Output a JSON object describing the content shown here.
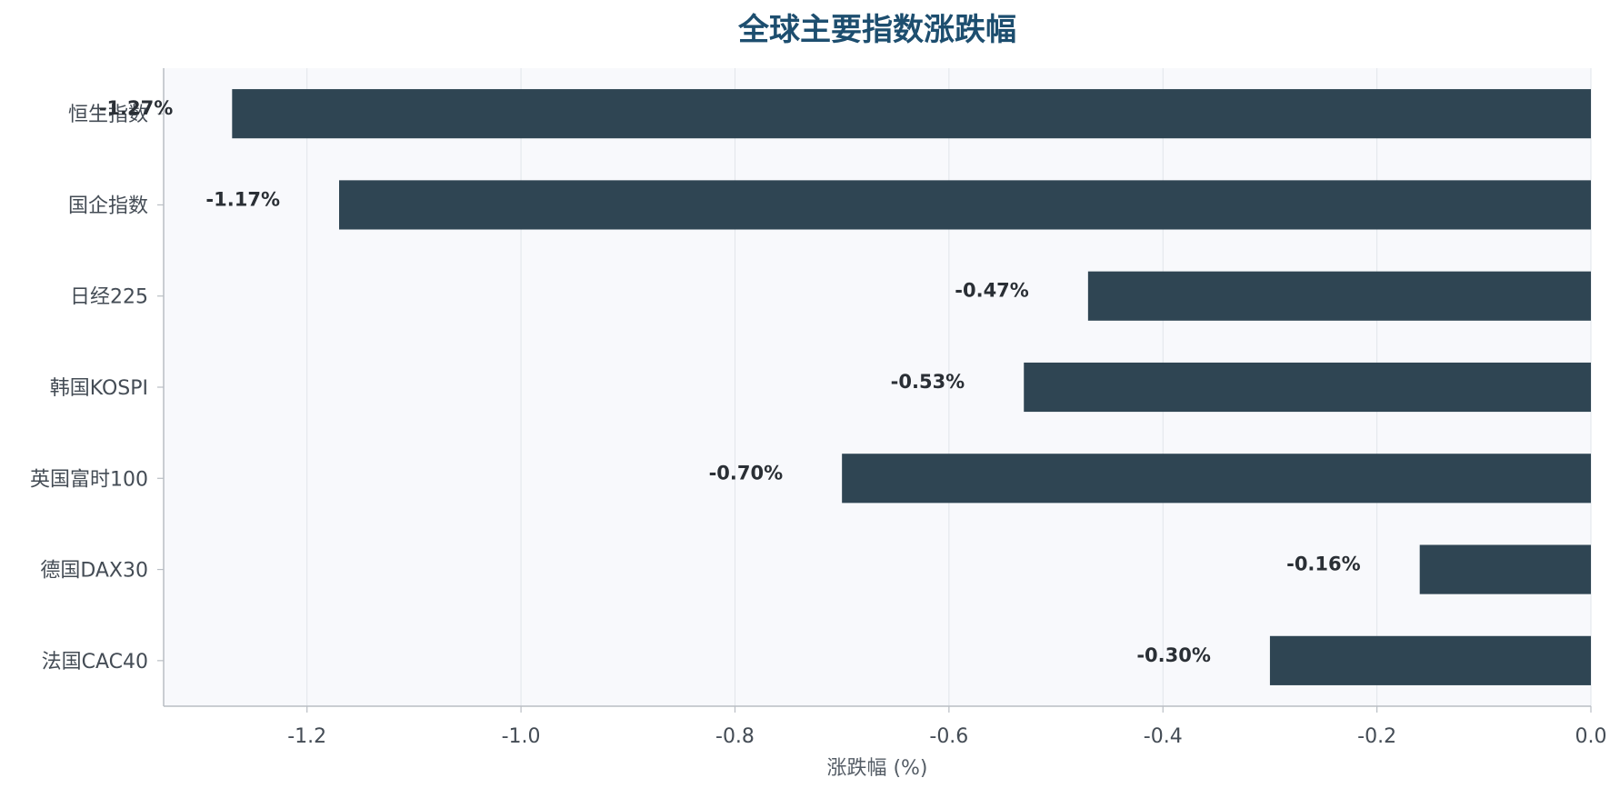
{
  "chart_data": {
    "type": "bar",
    "orientation": "horizontal",
    "title": "全球主要指数涨跌幅",
    "xlabel": "涨跌幅 (%)",
    "ylabel": "",
    "categories": [
      "恒生指数",
      "国企指数",
      "日经225",
      "韩国KOSPI",
      "英国富时100",
      "德国DAX30",
      "法国CAC40"
    ],
    "values": [
      -1.27,
      -1.17,
      -0.47,
      -0.53,
      -0.7,
      -0.16,
      -0.3
    ],
    "data_labels": [
      "-1.27%",
      "-1.17%",
      "-0.47%",
      "-0.53%",
      "-0.70%",
      "-0.16%",
      "-0.30%"
    ],
    "x_ticks": [
      -1.2,
      -1.0,
      -0.8,
      -0.6,
      -0.4,
      -0.2,
      0.0
    ],
    "x_tick_labels": [
      "-1.2",
      "-1.0",
      "-0.8",
      "-0.6",
      "-0.4",
      "-0.2",
      "0.0"
    ],
    "xlim": [
      -1.334,
      0.0
    ],
    "grid": "vertical",
    "legend": "none",
    "colors": {
      "bar": "#2f4553",
      "plot_background": "#f8f9fc",
      "grid": "#e1e5ea",
      "axis": "#b9bec4",
      "title": "#1d4e6f"
    }
  }
}
